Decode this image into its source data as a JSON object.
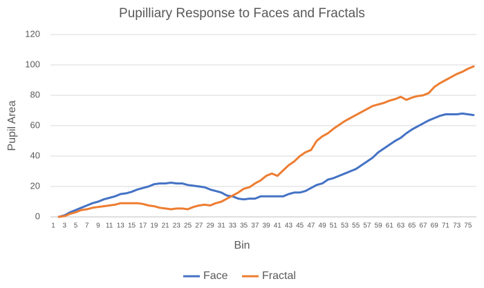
{
  "chart_data": {
    "type": "line",
    "title": "Pupilliary Response to Faces and Fractals",
    "x_label": "Bin",
    "y_label": "Pupil Area",
    "categories": [
      1,
      null,
      3,
      null,
      5,
      null,
      7,
      null,
      9,
      null,
      11,
      null,
      13,
      null,
      15,
      null,
      17,
      null,
      19,
      null,
      21,
      null,
      23,
      null,
      25,
      null,
      27,
      null,
      29,
      null,
      31,
      null,
      33,
      null,
      35,
      null,
      37,
      null,
      39,
      null,
      41,
      null,
      43,
      null,
      45,
      null,
      47,
      null,
      49,
      null,
      51,
      null,
      53,
      null,
      55,
      null,
      57,
      null,
      59,
      null,
      61,
      null,
      63,
      null,
      65,
      null,
      67,
      null,
      69,
      null,
      71,
      null,
      73,
      null,
      75,
      null
    ],
    "series": [
      {
        "name": "Face",
        "color": "#4472c4",
        "values": [
          null,
          0,
          1,
          3,
          4.5,
          6,
          7.5,
          9,
          10,
          11.5,
          12.5,
          13.5,
          15,
          15.5,
          16.5,
          18,
          19,
          20,
          21.5,
          22,
          22,
          22.5,
          22,
          22,
          21,
          20.5,
          20,
          19.5,
          18,
          17,
          16,
          14,
          13.5,
          12,
          11.5,
          12,
          12,
          13.5,
          13.5,
          13.5,
          13.5,
          13.5,
          15,
          16,
          16,
          17,
          19,
          21,
          22,
          24.5,
          25.5,
          27,
          28.5,
          30,
          31.5,
          34,
          36.5,
          39,
          42.5,
          45,
          47.5,
          50,
          52,
          55,
          57.5,
          59.5,
          61.5,
          63.5,
          65,
          66.5,
          67.5,
          67.5,
          67.5,
          68,
          67.5,
          67
        ]
      },
      {
        "name": "Fractal",
        "color": "#ed7d31",
        "values": [
          null,
          0,
          0.5,
          2,
          3,
          4.5,
          5,
          6,
          6.5,
          7,
          7.5,
          8,
          9,
          9,
          9,
          9,
          8.5,
          7.5,
          7,
          6,
          5.5,
          5,
          5.5,
          5.5,
          5,
          6.5,
          7.5,
          8,
          7.5,
          9,
          10,
          12,
          14,
          16,
          18.5,
          19.5,
          22,
          24,
          27,
          28.5,
          27,
          30.5,
          34,
          36.5,
          40,
          42.5,
          44,
          50,
          53,
          55,
          58,
          60.5,
          63,
          65,
          67,
          69,
          71,
          73,
          74,
          75,
          76.5,
          77.5,
          79,
          77,
          78.5,
          79.5,
          80,
          81.5,
          85.5,
          88,
          90,
          92,
          94,
          95.5,
          97.5,
          99
        ]
      }
    ],
    "ylim": [
      0,
      120
    ],
    "yticks": [
      0,
      20,
      40,
      60,
      80,
      100,
      120
    ],
    "grid": true,
    "legend": "bottom"
  }
}
